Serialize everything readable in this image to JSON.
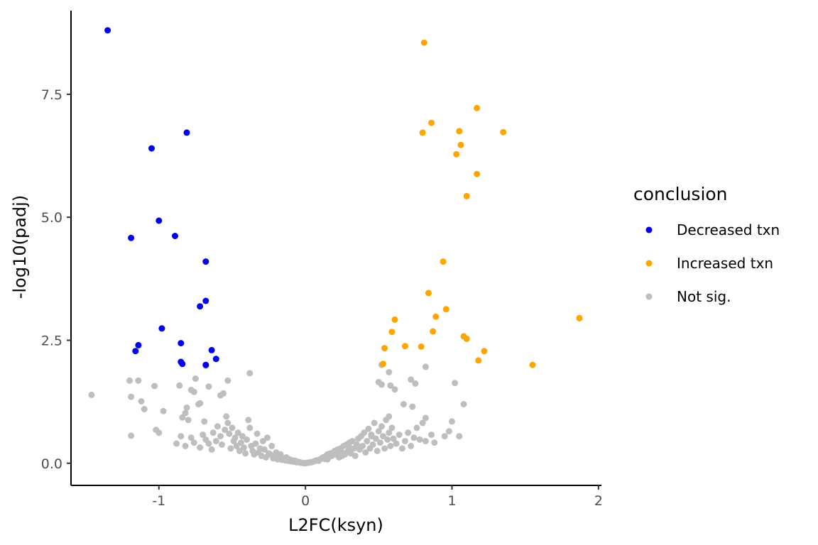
{
  "chart_data": {
    "type": "scatter",
    "xlabel": "L2FC(ksyn)",
    "ylabel": "-log10(padj)",
    "xlim": [
      -1.6,
      2.02
    ],
    "ylim": [
      -0.45,
      9.2
    ],
    "x_ticks": [
      -1,
      0,
      1,
      2
    ],
    "x_tick_labels": [
      "-1",
      "0",
      "1",
      "2"
    ],
    "y_ticks": [
      0,
      2.5,
      5,
      7.5
    ],
    "y_tick_labels": [
      "0.0",
      "2.5",
      "5.0",
      "7.5"
    ],
    "grid": false,
    "legend": {
      "title": "conclusion",
      "placement": "right",
      "entries": [
        {
          "label": "Decreased txn",
          "color": "#0000ee"
        },
        {
          "label": "Increased txn",
          "color": "#ffa500"
        },
        {
          "label": "Not sig.",
          "color": "#bebebe"
        }
      ]
    },
    "series": [
      {
        "name": "Decreased txn",
        "color": "#0000ee",
        "points": [
          [
            -1.35,
            8.8
          ],
          [
            -0.81,
            6.72
          ],
          [
            -1.05,
            6.4
          ],
          [
            -1.0,
            4.93
          ],
          [
            -0.89,
            4.62
          ],
          [
            -1.19,
            4.58
          ],
          [
            -0.68,
            4.1
          ],
          [
            -0.68,
            3.3
          ],
          [
            -0.72,
            3.19
          ],
          [
            -0.98,
            2.74
          ],
          [
            -0.85,
            2.44
          ],
          [
            -1.14,
            2.4
          ],
          [
            -1.16,
            2.28
          ],
          [
            -0.64,
            2.3
          ],
          [
            -0.61,
            2.12
          ],
          [
            -0.85,
            2.06
          ],
          [
            -0.84,
            2.02
          ],
          [
            -0.68,
            2.0
          ]
        ]
      },
      {
        "name": "Increased txn",
        "color": "#ffa500",
        "points": [
          [
            0.81,
            8.55
          ],
          [
            1.17,
            7.22
          ],
          [
            0.86,
            6.92
          ],
          [
            0.8,
            6.72
          ],
          [
            1.05,
            6.75
          ],
          [
            1.35,
            6.73
          ],
          [
            1.06,
            6.47
          ],
          [
            1.03,
            6.28
          ],
          [
            1.17,
            5.88
          ],
          [
            1.1,
            5.43
          ],
          [
            0.94,
            4.1
          ],
          [
            0.84,
            3.46
          ],
          [
            0.96,
            3.13
          ],
          [
            0.89,
            2.98
          ],
          [
            0.61,
            2.92
          ],
          [
            1.87,
            2.95
          ],
          [
            0.59,
            2.67
          ],
          [
            0.87,
            2.68
          ],
          [
            1.08,
            2.58
          ],
          [
            1.1,
            2.53
          ],
          [
            0.68,
            2.38
          ],
          [
            0.79,
            2.37
          ],
          [
            0.54,
            2.34
          ],
          [
            1.22,
            2.28
          ],
          [
            1.18,
            2.09
          ],
          [
            0.53,
            2.02
          ],
          [
            1.55,
            2.0
          ]
        ]
      },
      {
        "name": "Not sig.",
        "color": "#bebebe",
        "points": [
          [
            -1.46,
            1.39
          ],
          [
            -1.2,
            1.68
          ],
          [
            -1.19,
            1.35
          ],
          [
            -1.14,
            1.68
          ],
          [
            -1.12,
            1.26
          ],
          [
            -1.1,
            1.1
          ],
          [
            -1.03,
            1.57
          ],
          [
            -1.0,
            0.62
          ],
          [
            -1.02,
            0.68
          ],
          [
            -0.97,
            1.06
          ],
          [
            -1.19,
            0.56
          ],
          [
            -0.86,
            1.58
          ],
          [
            -0.84,
            0.93
          ],
          [
            -0.82,
            1.02
          ],
          [
            -0.81,
            1.13
          ],
          [
            -0.8,
            0.88
          ],
          [
            -0.78,
            1.49
          ],
          [
            -0.76,
            1.45
          ],
          [
            -0.75,
            1.72
          ],
          [
            -0.73,
            1.2
          ],
          [
            -0.72,
            1.22
          ],
          [
            -0.68,
            1.98
          ],
          [
            -0.66,
            1.56
          ],
          [
            -0.58,
            1.38
          ],
          [
            -0.56,
            1.42
          ],
          [
            -0.53,
            1.68
          ],
          [
            -0.38,
            1.83
          ],
          [
            -0.69,
            0.85
          ],
          [
            -0.85,
            0.55
          ],
          [
            -0.88,
            0.4
          ],
          [
            -0.82,
            0.35
          ],
          [
            -0.78,
            0.52
          ],
          [
            -0.76,
            0.42
          ],
          [
            -0.72,
            0.32
          ],
          [
            -0.7,
            0.58
          ],
          [
            -0.68,
            0.48
          ],
          [
            -0.66,
            0.4
          ],
          [
            -0.64,
            0.28
          ],
          [
            -0.63,
            0.62
          ],
          [
            -0.61,
            0.45
          ],
          [
            -0.6,
            0.75
          ],
          [
            -0.58,
            0.55
          ],
          [
            -0.57,
            0.38
          ],
          [
            -0.55,
            0.68
          ],
          [
            -0.54,
            0.95
          ],
          [
            -0.53,
            0.82
          ],
          [
            -0.52,
            0.6
          ],
          [
            -0.51,
            0.3
          ],
          [
            -0.5,
            0.72
          ],
          [
            -0.49,
            0.45
          ],
          [
            -0.48,
            0.52
          ],
          [
            -0.47,
            0.35
          ],
          [
            -0.46,
            0.62
          ],
          [
            -0.45,
            0.25
          ],
          [
            -0.44,
            0.42
          ],
          [
            -0.43,
            0.55
          ],
          [
            -0.42,
            0.32
          ],
          [
            -0.41,
            0.2
          ],
          [
            -0.4,
            0.48
          ],
          [
            -0.39,
            0.88
          ],
          [
            -0.38,
            0.72
          ],
          [
            -0.37,
            0.35
          ],
          [
            -0.36,
            0.25
          ],
          [
            -0.35,
            0.18
          ],
          [
            -0.34,
            0.4
          ],
          [
            -0.33,
            0.6
          ],
          [
            -0.32,
            0.22
          ],
          [
            -0.31,
            0.3
          ],
          [
            -0.3,
            0.15
          ],
          [
            -0.29,
            0.45
          ],
          [
            -0.28,
            0.28
          ],
          [
            -0.27,
            0.12
          ],
          [
            -0.26,
            0.52
          ],
          [
            -0.25,
            0.2
          ],
          [
            -0.24,
            0.18
          ],
          [
            -0.23,
            0.35
          ],
          [
            -0.22,
            0.1
          ],
          [
            -0.21,
            0.14
          ],
          [
            -0.2,
            0.22
          ],
          [
            -0.19,
            0.08
          ],
          [
            -0.18,
            0.12
          ],
          [
            -0.17,
            0.18
          ],
          [
            -0.16,
            0.07
          ],
          [
            -0.15,
            0.1
          ],
          [
            -0.14,
            0.06
          ],
          [
            -0.13,
            0.12
          ],
          [
            -0.12,
            0.05
          ],
          [
            -0.11,
            0.08
          ],
          [
            -0.1,
            0.04
          ],
          [
            -0.09,
            0.06
          ],
          [
            -0.08,
            0.03
          ],
          [
            -0.07,
            0.05
          ],
          [
            -0.06,
            0.02
          ],
          [
            -0.05,
            0.03
          ],
          [
            -0.04,
            0.02
          ],
          [
            -0.03,
            0.01
          ],
          [
            -0.02,
            0.01
          ],
          [
            -0.01,
            0.0
          ],
          [
            0.0,
            0.0
          ],
          [
            0.01,
            0.01
          ],
          [
            0.02,
            0.01
          ],
          [
            0.03,
            0.02
          ],
          [
            0.04,
            0.02
          ],
          [
            0.05,
            0.03
          ],
          [
            0.06,
            0.04
          ],
          [
            0.07,
            0.05
          ],
          [
            0.08,
            0.06
          ],
          [
            0.09,
            0.05
          ],
          [
            0.1,
            0.08
          ],
          [
            0.11,
            0.1
          ],
          [
            0.12,
            0.12
          ],
          [
            0.13,
            0.09
          ],
          [
            0.14,
            0.15
          ],
          [
            0.15,
            0.18
          ],
          [
            0.16,
            0.12
          ],
          [
            0.17,
            0.2
          ],
          [
            0.18,
            0.15
          ],
          [
            0.19,
            0.22
          ],
          [
            0.2,
            0.25
          ],
          [
            0.21,
            0.18
          ],
          [
            0.22,
            0.28
          ],
          [
            0.23,
            0.12
          ],
          [
            0.24,
            0.3
          ],
          [
            0.25,
            0.22
          ],
          [
            0.26,
            0.35
          ],
          [
            0.27,
            0.18
          ],
          [
            0.28,
            0.38
          ],
          [
            0.29,
            0.25
          ],
          [
            0.3,
            0.42
          ],
          [
            0.31,
            0.2
          ],
          [
            0.32,
            0.45
          ],
          [
            0.33,
            0.3
          ],
          [
            0.34,
            0.15
          ],
          [
            0.35,
            0.38
          ],
          [
            0.36,
            0.5
          ],
          [
            0.37,
            0.28
          ],
          [
            0.38,
            0.55
          ],
          [
            0.39,
            0.35
          ],
          [
            0.4,
            0.62
          ],
          [
            0.41,
            0.22
          ],
          [
            0.42,
            0.45
          ],
          [
            0.43,
            0.7
          ],
          [
            0.44,
            0.3
          ],
          [
            0.45,
            0.58
          ],
          [
            0.46,
            0.38
          ],
          [
            0.47,
            0.82
          ],
          [
            0.48,
            0.5
          ],
          [
            0.49,
            0.25
          ],
          [
            0.5,
            0.65
          ],
          [
            0.51,
            0.42
          ],
          [
            0.52,
            0.75
          ],
          [
            0.53,
            0.55
          ],
          [
            0.54,
            0.3
          ],
          [
            0.55,
            0.88
          ],
          [
            0.56,
            0.48
          ],
          [
            0.57,
            0.62
          ],
          [
            0.58,
            0.35
          ],
          [
            0.59,
            0.72
          ],
          [
            0.6,
            0.5
          ],
          [
            0.62,
            0.4
          ],
          [
            0.64,
            0.58
          ],
          [
            0.66,
            0.3
          ],
          [
            0.68,
            0.45
          ],
          [
            0.7,
            0.62
          ],
          [
            0.72,
            0.35
          ],
          [
            0.74,
            0.52
          ],
          [
            0.76,
            0.72
          ],
          [
            0.78,
            0.48
          ],
          [
            0.8,
            0.82
          ],
          [
            0.82,
            0.92
          ],
          [
            0.82,
            0.45
          ],
          [
            0.86,
            0.58
          ],
          [
            0.88,
            0.42
          ],
          [
            0.95,
            0.55
          ],
          [
            0.98,
            0.65
          ],
          [
            1.0,
            0.85
          ],
          [
            1.05,
            0.55
          ],
          [
            1.08,
            1.2
          ],
          [
            1.02,
            1.63
          ],
          [
            0.52,
            2.0
          ],
          [
            0.5,
            1.65
          ],
          [
            0.52,
            1.6
          ],
          [
            0.57,
            1.85
          ],
          [
            0.58,
            1.58
          ],
          [
            0.61,
            1.5
          ],
          [
            0.67,
            1.2
          ],
          [
            0.72,
            1.7
          ],
          [
            0.75,
            1.62
          ],
          [
            0.73,
            1.15
          ],
          [
            0.82,
            1.96
          ],
          [
            0.57,
            0.95
          ],
          [
            0.45,
            0.55
          ],
          [
            0.3,
            0.32
          ],
          [
            0.25,
            0.15
          ],
          [
            0.15,
            0.08
          ]
        ]
      }
    ]
  }
}
